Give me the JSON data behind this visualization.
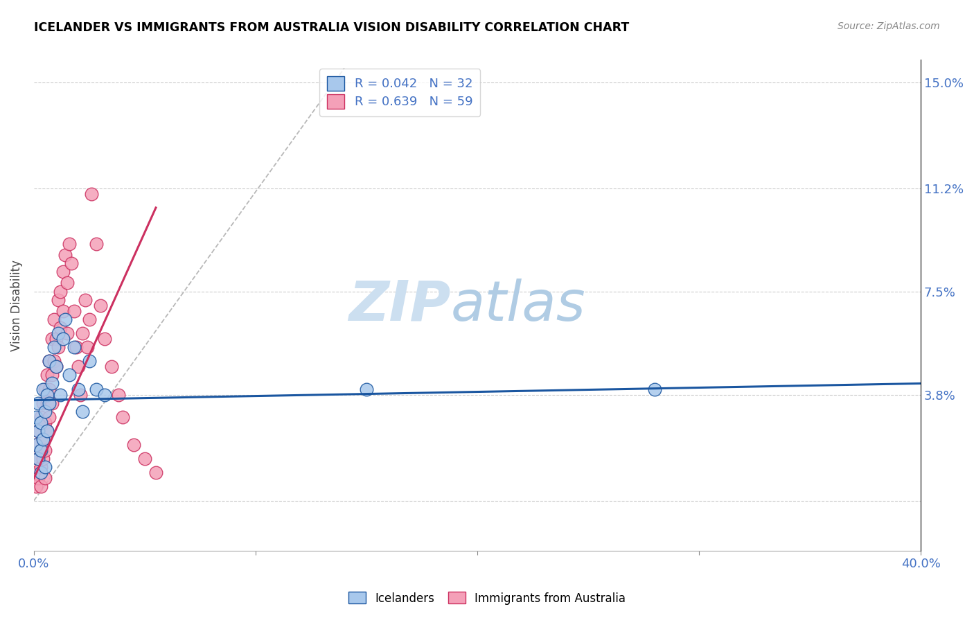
{
  "title": "ICELANDER VS IMMIGRANTS FROM AUSTRALIA VISION DISABILITY CORRELATION CHART",
  "source": "Source: ZipAtlas.com",
  "ylabel": "Vision Disability",
  "xlim": [
    0.0,
    0.4
  ],
  "ylim": [
    -0.018,
    0.158
  ],
  "color_icelanders": "#a8c8ec",
  "color_immigrants": "#f4a0b8",
  "color_icelanders_line": "#1a56a0",
  "color_immigrants_line": "#cc3060",
  "color_diagonal": "#b8b8b8",
  "ytick_positions": [
    0.0,
    0.038,
    0.075,
    0.112,
    0.15
  ],
  "ytick_labels": [
    "",
    "3.8%",
    "7.5%",
    "11.2%",
    "15.0%"
  ],
  "xtick_positions": [
    0.0,
    0.1,
    0.2,
    0.3,
    0.4
  ],
  "xtick_labels": [
    "0.0%",
    "",
    "",
    "",
    "40.0%"
  ],
  "icelanders_x": [
    0.001,
    0.001,
    0.002,
    0.002,
    0.002,
    0.003,
    0.003,
    0.003,
    0.004,
    0.004,
    0.005,
    0.005,
    0.006,
    0.006,
    0.007,
    0.007,
    0.008,
    0.009,
    0.01,
    0.011,
    0.012,
    0.013,
    0.014,
    0.016,
    0.018,
    0.02,
    0.022,
    0.025,
    0.028,
    0.032,
    0.15,
    0.28
  ],
  "icelanders_y": [
    0.03,
    0.02,
    0.025,
    0.015,
    0.035,
    0.028,
    0.018,
    0.01,
    0.04,
    0.022,
    0.032,
    0.012,
    0.038,
    0.025,
    0.05,
    0.035,
    0.042,
    0.055,
    0.048,
    0.06,
    0.038,
    0.058,
    0.065,
    0.045,
    0.055,
    0.04,
    0.032,
    0.05,
    0.04,
    0.038,
    0.04,
    0.04
  ],
  "immigrants_x": [
    0.001,
    0.001,
    0.001,
    0.002,
    0.002,
    0.002,
    0.003,
    0.003,
    0.003,
    0.003,
    0.004,
    0.004,
    0.004,
    0.005,
    0.005,
    0.005,
    0.005,
    0.006,
    0.006,
    0.006,
    0.007,
    0.007,
    0.007,
    0.008,
    0.008,
    0.008,
    0.009,
    0.009,
    0.01,
    0.01,
    0.011,
    0.011,
    0.012,
    0.012,
    0.013,
    0.013,
    0.014,
    0.015,
    0.015,
    0.016,
    0.017,
    0.018,
    0.019,
    0.02,
    0.021,
    0.022,
    0.023,
    0.024,
    0.025,
    0.026,
    0.028,
    0.03,
    0.032,
    0.035,
    0.038,
    0.04,
    0.045,
    0.05,
    0.055
  ],
  "immigrants_y": [
    0.005,
    0.01,
    0.02,
    0.015,
    0.025,
    0.008,
    0.03,
    0.018,
    0.012,
    0.005,
    0.035,
    0.022,
    0.015,
    0.04,
    0.028,
    0.018,
    0.008,
    0.045,
    0.035,
    0.025,
    0.05,
    0.04,
    0.03,
    0.058,
    0.045,
    0.035,
    0.065,
    0.05,
    0.058,
    0.048,
    0.072,
    0.055,
    0.075,
    0.062,
    0.082,
    0.068,
    0.088,
    0.078,
    0.06,
    0.092,
    0.085,
    0.068,
    0.055,
    0.048,
    0.038,
    0.06,
    0.072,
    0.055,
    0.065,
    0.11,
    0.092,
    0.07,
    0.058,
    0.048,
    0.038,
    0.03,
    0.02,
    0.015,
    0.01
  ],
  "ice_line_x": [
    0.0,
    0.4
  ],
  "ice_line_y": [
    0.036,
    0.042
  ],
  "imm_line_x": [
    0.0,
    0.055
  ],
  "imm_line_y": [
    0.008,
    0.105
  ]
}
